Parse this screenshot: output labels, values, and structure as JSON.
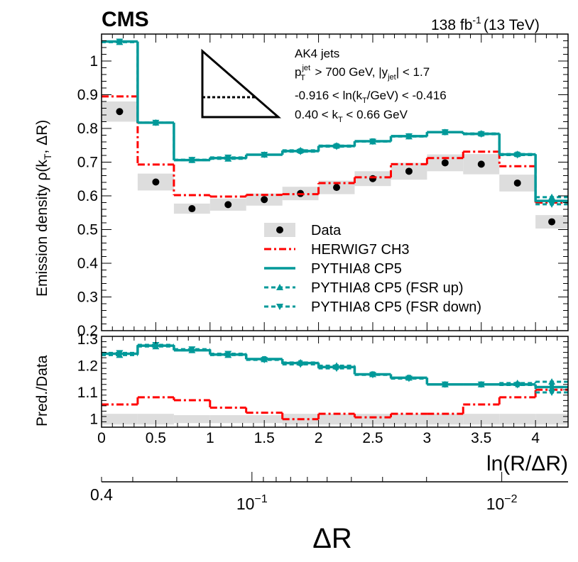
{
  "header": {
    "experiment": "CMS",
    "lumi": "138 fb",
    "lumi_exp": "-1",
    "energy": "(13 TeV)"
  },
  "selection": {
    "line1": "AK4 jets",
    "line2_pre": "p",
    "line2_sup": "jet",
    "line2_sub": "T",
    "line2_mid": " > 700 GeV, |y",
    "line2_sub2": "jet",
    "line2_post": "| < 1.7",
    "line3_pre": "-0.916 < ln(k",
    "line3_sub": "T",
    "line3_post": "/GeV) < -0.416",
    "line4_pre": "0.40 < k",
    "line4_sub": "T",
    "line4_post": " < 0.66 GeV"
  },
  "colors": {
    "herwig": "#ff0000",
    "pythia": "#009999",
    "data_band": "#dddddd",
    "data_marker": "#000000"
  },
  "chart_data": [
    {
      "type": "line",
      "panel": "main",
      "ylabel_pre": "Emission density ρ(k",
      "ylabel_sub": "T",
      "ylabel_post": ", ΔR)",
      "ylim": [
        0.2,
        1.08
      ],
      "xlim": [
        0,
        4.3
      ],
      "yticks": [
        0.2,
        0.3,
        0.4,
        0.5,
        0.6,
        0.7,
        0.8,
        0.9,
        1.0
      ],
      "ytick_labels": [
        "0.2",
        "0.3",
        "0.4",
        "0.5",
        "0.6",
        "0.7",
        "0.8",
        "0.9",
        "1"
      ],
      "bin_edges": [
        0,
        0.333,
        0.667,
        1.0,
        1.333,
        1.667,
        2.0,
        2.333,
        2.667,
        3.0,
        3.333,
        3.667,
        4.0,
        4.3
      ],
      "series": [
        {
          "name": "Data",
          "style": "marker_band",
          "values": [
            0.85,
            0.641,
            0.562,
            0.574,
            0.589,
            0.607,
            0.625,
            0.651,
            0.673,
            0.698,
            0.694,
            0.638,
            0.523
          ],
          "band": [
            0.03,
            0.025,
            0.015,
            0.018,
            0.018,
            0.02,
            0.02,
            0.022,
            0.025,
            0.025,
            0.03,
            0.025,
            0.02
          ]
        },
        {
          "name": "HERWIG7 CH3",
          "style": "dashdot",
          "color": "#ff0000",
          "values": [
            0.895,
            0.693,
            0.602,
            0.598,
            0.603,
            0.605,
            0.638,
            0.655,
            0.694,
            0.712,
            0.731,
            0.688,
            0.58
          ]
        },
        {
          "name": "PYTHIA8 CP5",
          "style": "solid",
          "color": "#009999",
          "values": [
            1.058,
            0.817,
            0.706,
            0.712,
            0.722,
            0.733,
            0.748,
            0.762,
            0.777,
            0.789,
            0.784,
            0.723,
            0.585
          ]
        },
        {
          "name": "PYTHIA8 CP5 (FSR up)",
          "style": "dash_up",
          "color": "#009999",
          "values": [
            1.056,
            0.817,
            0.706,
            0.71,
            0.722,
            0.735,
            0.749,
            0.761,
            0.776,
            0.789,
            0.785,
            0.724,
            0.596
          ]
        },
        {
          "name": "PYTHIA8 CP5 (FSR down)",
          "style": "dash_down",
          "color": "#009999",
          "values": [
            1.058,
            0.817,
            0.707,
            0.714,
            0.722,
            0.731,
            0.746,
            0.761,
            0.777,
            0.789,
            0.783,
            0.721,
            0.575
          ]
        }
      ],
      "legend": [
        "Data",
        "HERWIG7 CH3",
        "PYTHIA8 CP5",
        "PYTHIA8 CP5 (FSR up)",
        "PYTHIA8 CP5 (FSR down)"
      ],
      "legend_position": "bottom-right"
    },
    {
      "type": "line",
      "panel": "ratio",
      "ylabel": "Pred./Data",
      "ylim": [
        0.97,
        1.31
      ],
      "yticks": [
        1.0,
        1.1,
        1.2,
        1.3
      ],
      "ytick_labels": [
        "1",
        "1.1",
        "1.2",
        "1.3"
      ],
      "xlabel": "ln(R/ΔR)",
      "xticks": [
        0,
        0.5,
        1,
        1.5,
        2,
        2.5,
        3,
        3.5,
        4
      ],
      "xtick_labels": [
        "0",
        "0.5",
        "1",
        "1.5",
        "2",
        "2.5",
        "3",
        "3.5",
        "4"
      ],
      "series": [
        {
          "name": "Data band",
          "style": "band",
          "values": [
            1.02,
            1.02,
            1.015,
            1.015,
            1.015,
            1.02,
            1.02,
            1.02,
            1.02,
            1.02,
            1.02,
            1.02,
            1.02
          ]
        },
        {
          "name": "HERWIG7 CH3",
          "style": "dashdot",
          "color": "#ff0000",
          "values": [
            1.055,
            1.082,
            1.071,
            1.043,
            1.024,
            1.0,
            1.02,
            1.007,
            1.02,
            1.02,
            1.055,
            1.082,
            1.11
          ]
        },
        {
          "name": "PYTHIA8 CP5",
          "style": "solid",
          "color": "#009999",
          "values": [
            1.245,
            1.275,
            1.258,
            1.242,
            1.225,
            1.21,
            1.195,
            1.168,
            1.155,
            1.13,
            1.13,
            1.13,
            1.12
          ]
        },
        {
          "name": "PYTHIA8 CP5 (FSR up)",
          "style": "dash_up",
          "color": "#009999",
          "values": [
            1.24,
            1.272,
            1.258,
            1.24,
            1.224,
            1.212,
            1.2,
            1.168,
            1.155,
            1.13,
            1.13,
            1.135,
            1.14
          ]
        },
        {
          "name": "PYTHIA8 CP5 (FSR down)",
          "style": "dash_down",
          "color": "#009999",
          "values": [
            1.248,
            1.278,
            1.262,
            1.245,
            1.222,
            1.205,
            1.19,
            1.166,
            1.152,
            1.13,
            1.13,
            1.128,
            1.1
          ]
        }
      ]
    },
    {
      "type": "axis",
      "panel": "secondary",
      "xlabel": "ΔR",
      "scale": "log",
      "labels": [
        {
          "value": 0.4,
          "text": "0.4"
        },
        {
          "value": 0.1,
          "base": "10",
          "exp": "−1"
        },
        {
          "value": 0.01,
          "base": "10",
          "exp": "−2"
        }
      ]
    }
  ]
}
